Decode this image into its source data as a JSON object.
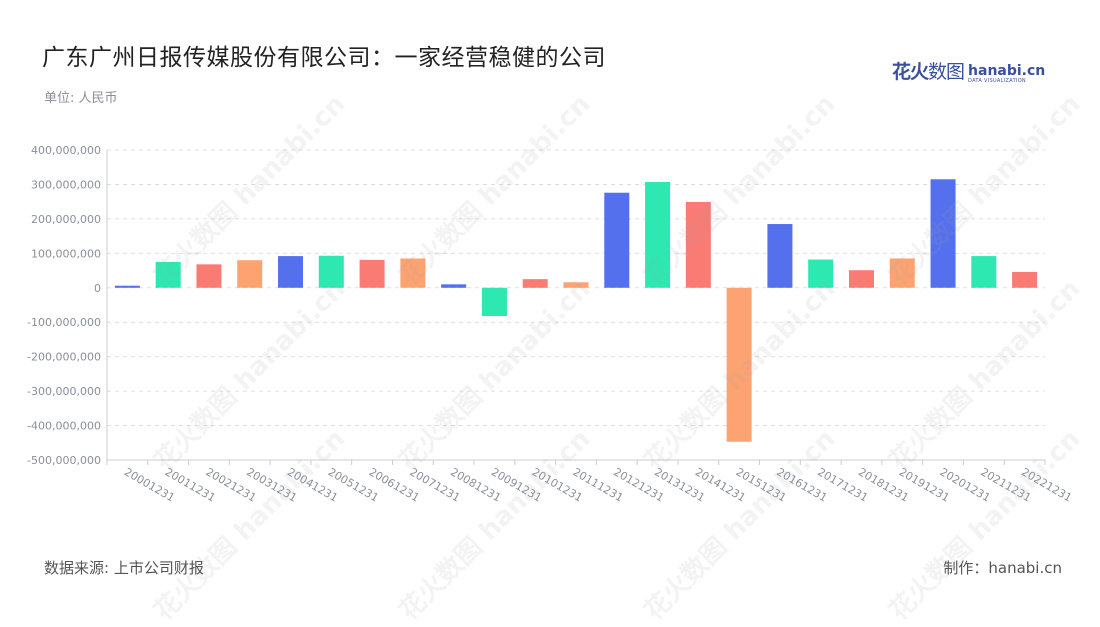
{
  "header": {
    "title": "广东广州日报传媒股份有限公司：一家经营稳健的公司",
    "unit": "单位: 人民币"
  },
  "logo": {
    "cn_main": "花火",
    "cn_sub": "数图",
    "en_main": "hanabi.cn",
    "en_sub": "DATA VISUALIZATION"
  },
  "footer": {
    "source": "数据来源: 上市公司财报",
    "credit": "制作：hanabi.cn"
  },
  "watermark": "花火数图 hanabi.cn",
  "chart_data": {
    "type": "bar",
    "categories": [
      "20001231",
      "20011231",
      "20021231",
      "20031231",
      "20041231",
      "20051231",
      "20061231",
      "20071231",
      "20081231",
      "20091231",
      "20101231",
      "20111231",
      "20121231",
      "20131231",
      "20141231",
      "20151231",
      "20161231",
      "20171231",
      "20181231",
      "20191231",
      "20201231",
      "20211231",
      "20221231"
    ],
    "values": [
      6000000,
      75000000,
      68000000,
      80000000,
      92000000,
      93000000,
      81000000,
      85000000,
      10000000,
      -82000000,
      25000000,
      16000000,
      276000000,
      307000000,
      249000000,
      -447000000,
      185000000,
      82000000,
      51000000,
      85000000,
      315000000,
      92000000,
      46000000
    ],
    "colors": [
      "#5470ec",
      "#2de8b0",
      "#fa7a74",
      "#fda371"
    ],
    "ylim": [
      -500000000,
      400000000
    ],
    "yticks": [
      400000000,
      300000000,
      200000000,
      100000000,
      0,
      -100000000,
      -200000000,
      -300000000,
      -400000000,
      -500000000
    ],
    "ytick_labels": [
      "400,000,000",
      "300,000,000",
      "200,000,000",
      "100,000,000",
      "0",
      "-100,000,000",
      "-200,000,000",
      "-300,000,000",
      "-400,000,000",
      "-500,000,000"
    ],
    "grid": true,
    "legend": "none"
  }
}
